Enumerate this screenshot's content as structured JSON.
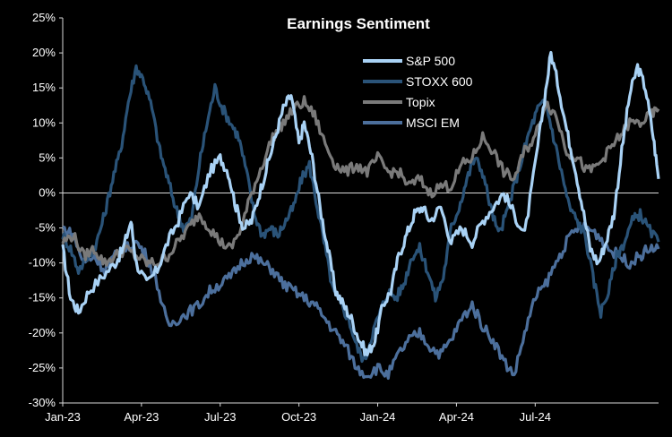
{
  "chart_data": {
    "type": "line",
    "title": "Earnings Sentiment",
    "xlabel": "",
    "ylabel": "",
    "x_tick_labels": [
      "Jan-23",
      "Apr-23",
      "Jul-23",
      "Oct-23",
      "Jan-24",
      "Apr-24",
      "Jul-24"
    ],
    "y_tick_labels": [
      "25%",
      "20%",
      "15%",
      "10%",
      "5%",
      "0%",
      "-5%",
      "-10%",
      "-15%",
      "-20%",
      "-25%",
      "-30%"
    ],
    "ylim": [
      -30,
      25
    ],
    "xlim": [
      0,
      22.7
    ],
    "x_unit": "months since Jan-23",
    "grid": false,
    "legend_position": "top-center",
    "series": [
      {
        "name": "S&P 500",
        "color": "#a9d2f5",
        "points": [
          [
            0,
            -8
          ],
          [
            0.3,
            -15
          ],
          [
            0.6,
            -17
          ],
          [
            1.0,
            -14
          ],
          [
            1.5,
            -12
          ],
          [
            2.0,
            -10
          ],
          [
            2.3,
            -8
          ],
          [
            2.6,
            -4
          ],
          [
            2.8,
            -10
          ],
          [
            3.2,
            -13
          ],
          [
            3.6,
            -11
          ],
          [
            4.0,
            -7
          ],
          [
            4.4,
            -4
          ],
          [
            4.8,
            0
          ],
          [
            5.2,
            -2
          ],
          [
            5.6,
            3
          ],
          [
            6.0,
            5
          ],
          [
            6.3,
            3
          ],
          [
            6.6,
            -2
          ],
          [
            6.9,
            -5
          ],
          [
            7.2,
            -4
          ],
          [
            7.5,
            0
          ],
          [
            7.8,
            4
          ],
          [
            8.1,
            8
          ],
          [
            8.4,
            12
          ],
          [
            8.7,
            14
          ],
          [
            9.0,
            7
          ],
          [
            9.2,
            10
          ],
          [
            9.5,
            5
          ],
          [
            9.8,
            -2
          ],
          [
            10.1,
            -8
          ],
          [
            10.4,
            -14
          ],
          [
            10.7,
            -16
          ],
          [
            11.0,
            -18
          ],
          [
            11.3,
            -21
          ],
          [
            11.6,
            -23
          ],
          [
            11.9,
            -21
          ],
          [
            12.2,
            -16
          ],
          [
            12.5,
            -14
          ],
          [
            12.8,
            -9
          ],
          [
            13.1,
            -6
          ],
          [
            13.4,
            -3
          ],
          [
            13.7,
            -2
          ],
          [
            14.0,
            -4
          ],
          [
            14.4,
            -2
          ],
          [
            14.8,
            -7
          ],
          [
            15.2,
            -5
          ],
          [
            15.6,
            -7
          ],
          [
            16.0,
            -4
          ],
          [
            16.4,
            -2
          ],
          [
            16.8,
            0
          ],
          [
            17.2,
            -3
          ],
          [
            17.6,
            -6
          ],
          [
            18.0,
            4
          ],
          [
            18.3,
            12
          ],
          [
            18.6,
            20
          ],
          [
            18.9,
            15
          ],
          [
            19.2,
            9
          ],
          [
            19.5,
            4
          ],
          [
            19.8,
            -2
          ],
          [
            20.1,
            -8
          ],
          [
            20.4,
            -10
          ],
          [
            20.7,
            -7
          ],
          [
            21.0,
            -3
          ],
          [
            21.3,
            6
          ],
          [
            21.6,
            14
          ],
          [
            21.9,
            18
          ],
          [
            22.2,
            15
          ],
          [
            22.5,
            8
          ],
          [
            22.7,
            2
          ]
        ]
      },
      {
        "name": "STOXX 600",
        "color": "#2a5378",
        "points": [
          [
            0,
            -6
          ],
          [
            0.3,
            -8
          ],
          [
            0.6,
            -11
          ],
          [
            1.0,
            -9
          ],
          [
            1.3,
            -7
          ],
          [
            1.6,
            -3
          ],
          [
            1.9,
            2
          ],
          [
            2.2,
            6
          ],
          [
            2.5,
            13
          ],
          [
            2.8,
            18
          ],
          [
            3.1,
            16
          ],
          [
            3.4,
            12
          ],
          [
            3.7,
            6
          ],
          [
            4.0,
            2
          ],
          [
            4.3,
            -2
          ],
          [
            4.6,
            -5
          ],
          [
            4.9,
            -4
          ],
          [
            5.2,
            4
          ],
          [
            5.5,
            10
          ],
          [
            5.8,
            15
          ],
          [
            6.1,
            12
          ],
          [
            6.4,
            10
          ],
          [
            6.7,
            8
          ],
          [
            7.0,
            3
          ],
          [
            7.3,
            -3
          ],
          [
            7.6,
            -6
          ],
          [
            7.9,
            -5
          ],
          [
            8.2,
            -6
          ],
          [
            8.5,
            -4
          ],
          [
            8.8,
            -2
          ],
          [
            9.1,
            2
          ],
          [
            9.4,
            4
          ],
          [
            9.7,
            -2
          ],
          [
            10.0,
            -8
          ],
          [
            10.3,
            -14
          ],
          [
            10.6,
            -16
          ],
          [
            10.9,
            -18
          ],
          [
            11.2,
            -22
          ],
          [
            11.5,
            -24
          ],
          [
            11.8,
            -20
          ],
          [
            12.1,
            -17
          ],
          [
            12.4,
            -14
          ],
          [
            12.7,
            -15
          ],
          [
            13.0,
            -13
          ],
          [
            13.3,
            -9
          ],
          [
            13.6,
            -8
          ],
          [
            13.9,
            -11
          ],
          [
            14.2,
            -15
          ],
          [
            14.5,
            -12
          ],
          [
            14.8,
            -5
          ],
          [
            15.1,
            -2
          ],
          [
            15.4,
            2
          ],
          [
            15.7,
            5
          ],
          [
            16.0,
            3
          ],
          [
            16.3,
            -2
          ],
          [
            16.6,
            -6
          ],
          [
            16.9,
            -3
          ],
          [
            17.2,
            1
          ],
          [
            17.5,
            5
          ],
          [
            17.8,
            9
          ],
          [
            18.1,
            12
          ],
          [
            18.4,
            13
          ],
          [
            18.7,
            8
          ],
          [
            19.0,
            3
          ],
          [
            19.3,
            -2
          ],
          [
            19.6,
            -4
          ],
          [
            19.9,
            -6
          ],
          [
            20.2,
            -12
          ],
          [
            20.5,
            -17
          ],
          [
            20.8,
            -14
          ],
          [
            21.1,
            -9
          ],
          [
            21.4,
            -7
          ],
          [
            21.7,
            -4
          ],
          [
            22.0,
            -3
          ],
          [
            22.3,
            -5
          ],
          [
            22.7,
            -7
          ]
        ]
      },
      {
        "name": "Topix",
        "color": "#7a7a7a",
        "points": [
          [
            0,
            -7
          ],
          [
            0.4,
            -6
          ],
          [
            0.8,
            -9
          ],
          [
            1.2,
            -8
          ],
          [
            1.6,
            -10
          ],
          [
            2.0,
            -9
          ],
          [
            2.4,
            -8
          ],
          [
            2.8,
            -9
          ],
          [
            3.2,
            -10
          ],
          [
            3.6,
            -10
          ],
          [
            4.0,
            -9
          ],
          [
            4.4,
            -7
          ],
          [
            4.8,
            -5
          ],
          [
            5.2,
            -3
          ],
          [
            5.6,
            -5
          ],
          [
            6.0,
            -7
          ],
          [
            6.4,
            -8
          ],
          [
            6.8,
            -5
          ],
          [
            7.2,
            0
          ],
          [
            7.6,
            4
          ],
          [
            8.0,
            8
          ],
          [
            8.4,
            10
          ],
          [
            8.8,
            12
          ],
          [
            9.2,
            13
          ],
          [
            9.6,
            11
          ],
          [
            10.0,
            7
          ],
          [
            10.4,
            4
          ],
          [
            10.8,
            3
          ],
          [
            11.2,
            4
          ],
          [
            11.6,
            3
          ],
          [
            12.0,
            5
          ],
          [
            12.4,
            3
          ],
          [
            12.8,
            3
          ],
          [
            13.2,
            1
          ],
          [
            13.6,
            2
          ],
          [
            14.0,
            0
          ],
          [
            14.4,
            1
          ],
          [
            14.8,
            1
          ],
          [
            15.2,
            4
          ],
          [
            15.6,
            5
          ],
          [
            16.0,
            8
          ],
          [
            16.4,
            6
          ],
          [
            16.8,
            3
          ],
          [
            17.2,
            2
          ],
          [
            17.6,
            6
          ],
          [
            18.0,
            8
          ],
          [
            18.4,
            13
          ],
          [
            18.8,
            11
          ],
          [
            19.2,
            6
          ],
          [
            19.6,
            5
          ],
          [
            20.0,
            3
          ],
          [
            20.4,
            4
          ],
          [
            20.8,
            6
          ],
          [
            21.2,
            8
          ],
          [
            21.6,
            10
          ],
          [
            22.0,
            10
          ],
          [
            22.4,
            11
          ],
          [
            22.7,
            12
          ]
        ]
      },
      {
        "name": "MSCI EM",
        "color": "#4c6f9c",
        "points": [
          [
            0,
            -5
          ],
          [
            0.4,
            -6
          ],
          [
            0.8,
            -10
          ],
          [
            1.2,
            -9
          ],
          [
            1.6,
            -11
          ],
          [
            2.0,
            -9
          ],
          [
            2.4,
            -8
          ],
          [
            2.8,
            -7
          ],
          [
            3.2,
            -9
          ],
          [
            3.6,
            -13
          ],
          [
            4.0,
            -19
          ],
          [
            4.4,
            -18
          ],
          [
            4.8,
            -17
          ],
          [
            5.2,
            -16
          ],
          [
            5.6,
            -14
          ],
          [
            6.0,
            -13
          ],
          [
            6.4,
            -12
          ],
          [
            6.8,
            -10
          ],
          [
            7.2,
            -9
          ],
          [
            7.6,
            -10
          ],
          [
            8.0,
            -11
          ],
          [
            8.4,
            -13
          ],
          [
            8.8,
            -14
          ],
          [
            9.2,
            -15
          ],
          [
            9.6,
            -16
          ],
          [
            10.0,
            -18
          ],
          [
            10.4,
            -20
          ],
          [
            10.8,
            -22
          ],
          [
            11.2,
            -25
          ],
          [
            11.6,
            -26
          ],
          [
            12.0,
            -25
          ],
          [
            12.4,
            -26
          ],
          [
            12.8,
            -23
          ],
          [
            13.2,
            -21
          ],
          [
            13.6,
            -20
          ],
          [
            14.0,
            -22
          ],
          [
            14.4,
            -23
          ],
          [
            14.8,
            -21
          ],
          [
            15.2,
            -18
          ],
          [
            15.6,
            -16
          ],
          [
            16.0,
            -19
          ],
          [
            16.4,
            -21
          ],
          [
            16.8,
            -24
          ],
          [
            17.2,
            -26
          ],
          [
            17.6,
            -20
          ],
          [
            18.0,
            -15
          ],
          [
            18.4,
            -13
          ],
          [
            18.8,
            -10
          ],
          [
            19.2,
            -7
          ],
          [
            19.6,
            -5
          ],
          [
            20.0,
            -5
          ],
          [
            20.4,
            -6
          ],
          [
            20.8,
            -8
          ],
          [
            21.2,
            -9
          ],
          [
            21.6,
            -10
          ],
          [
            22.0,
            -9
          ],
          [
            22.3,
            -8
          ],
          [
            22.7,
            -8
          ]
        ]
      }
    ]
  }
}
